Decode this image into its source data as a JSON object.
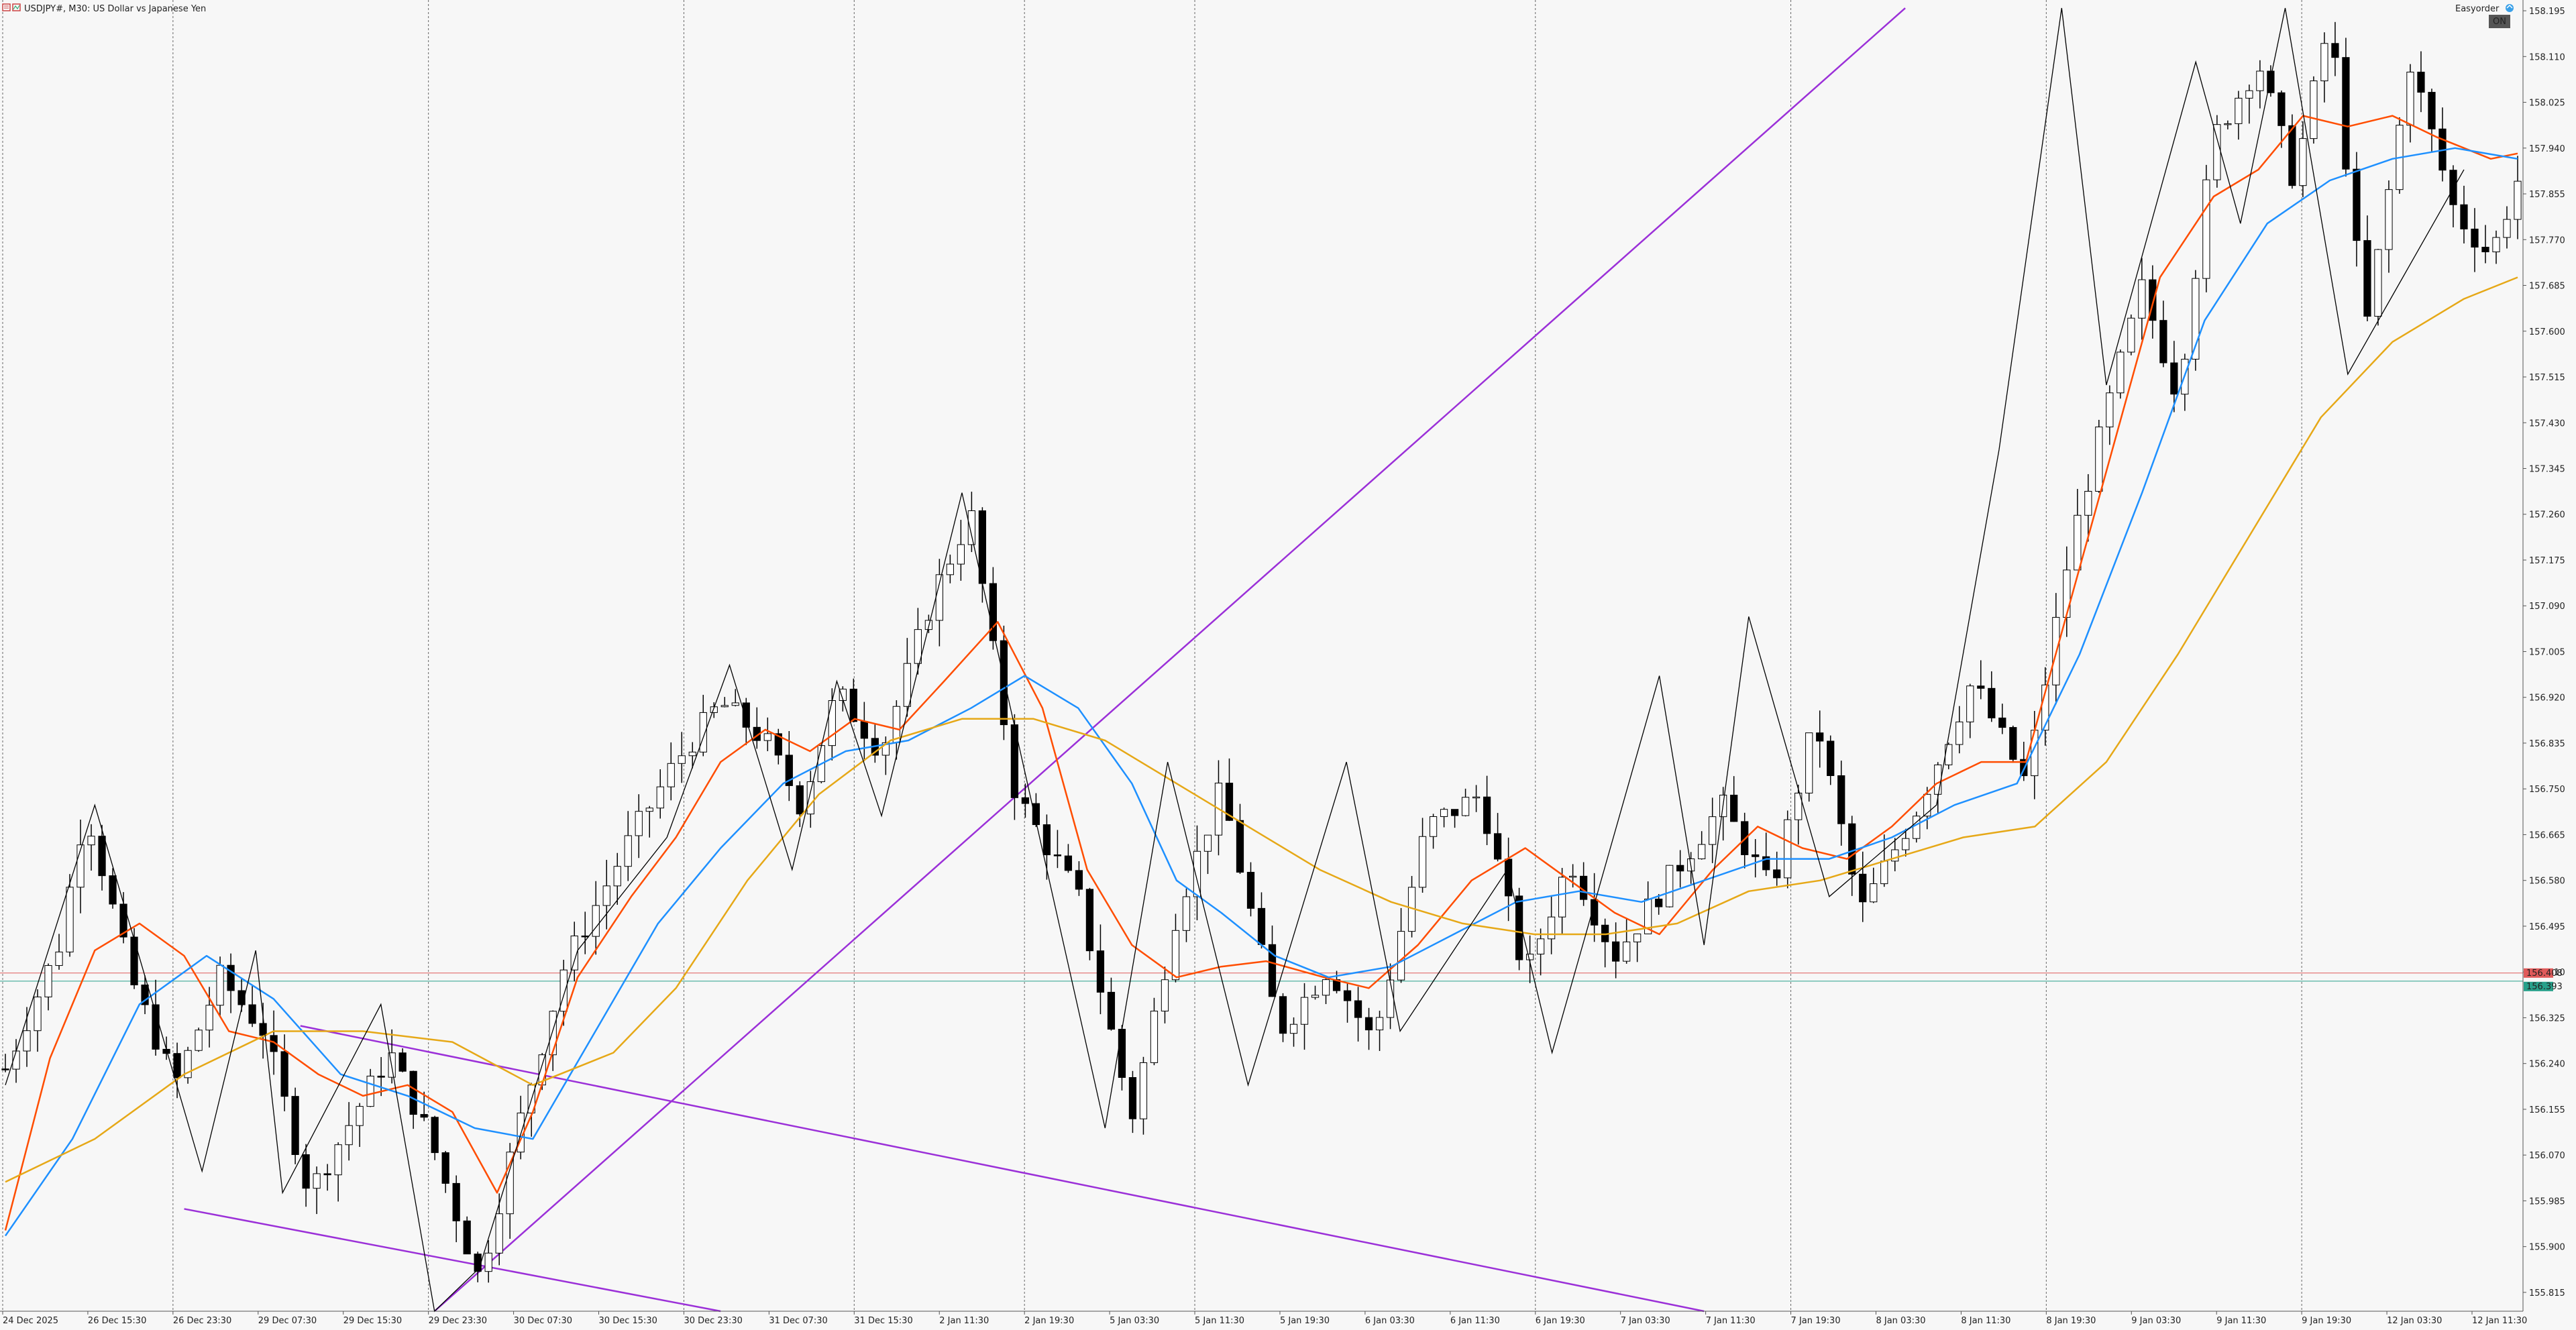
{
  "header": {
    "symbol_title": "USDJPY#, M30:  US Dollar vs Japanese Yen",
    "easy_order_label": "Easyorder",
    "on_badge": "ON",
    "icon_names": [
      "chart-menu-icon",
      "indicator-icon",
      "easyorder-icon"
    ]
  },
  "price_labels": {
    "bid": "156.408",
    "ask": "156.393"
  },
  "colors": {
    "background": "#f7f7f7",
    "candle_bull": "#ffffff",
    "candle_bear": "#000000",
    "ma_fast": "#ff4d00",
    "ma_mid": "#1e90ff",
    "ma_slow": "#e6a817",
    "trendline": "#9b30d8",
    "zigzag": "#000000",
    "bid_line": "#e05a5a",
    "ask_line": "#27a08a"
  },
  "chart_data": {
    "type": "candlestick",
    "symbol": "USDJPY#",
    "timeframe": "M30",
    "y_ticks": [
      "158.195",
      "158.110",
      "158.025",
      "157.940",
      "157.855",
      "157.770",
      "157.685",
      "157.600",
      "157.515",
      "157.430",
      "157.345",
      "157.260",
      "157.175",
      "157.090",
      "157.005",
      "156.920",
      "156.835",
      "156.750",
      "156.665",
      "156.580",
      "156.495",
      "156.410",
      "156.325",
      "156.240",
      "156.155",
      "156.070",
      "155.985",
      "155.900",
      "155.815"
    ],
    "ylim": [
      155.78,
      158.215
    ],
    "x_ticks": [
      "24 Dec 2025",
      "26 Dec 15:30",
      "26 Dec 23:30",
      "29 Dec 07:30",
      "29 Dec 15:30",
      "29 Dec 23:30",
      "30 Dec 07:30",
      "30 Dec 15:30",
      "30 Dec 23:30",
      "31 Dec 07:30",
      "31 Dec 15:30",
      "2 Jan 11:30",
      "2 Jan 19:30",
      "5 Jan 03:30",
      "5 Jan 11:30",
      "5 Jan 19:30",
      "6 Jan 03:30",
      "6 Jan 11:30",
      "6 Jan 19:30",
      "7 Jan 03:30",
      "7 Jan 11:30",
      "7 Jan 19:30",
      "8 Jan 03:30",
      "8 Jan 11:30",
      "8 Jan 19:30",
      "9 Jan 03:30",
      "9 Jan 11:30",
      "9 Jan 19:30",
      "12 Jan 03:30",
      "12 Jan 11:30"
    ],
    "day_separator_indices": [
      2,
      5,
      8,
      10,
      12,
      14,
      18,
      21,
      24,
      27
    ],
    "bid": 156.408,
    "ask": 156.393,
    "candle_count": 235,
    "close_path": [
      [
        0,
        156.23
      ],
      [
        12,
        156.46
      ],
      [
        18,
        156.72
      ],
      [
        28,
        156.4
      ],
      [
        38,
        156.2
      ],
      [
        48,
        156.4
      ],
      [
        58,
        156.3
      ],
      [
        68,
        156.0
      ],
      [
        75,
        156.1
      ],
      [
        86,
        156.26
      ],
      [
        95,
        156.1
      ],
      [
        106,
        155.84
      ],
      [
        114,
        156.1
      ],
      [
        125,
        156.42
      ],
      [
        140,
        156.66
      ],
      [
        150,
        156.8
      ],
      [
        160,
        156.91
      ],
      [
        170,
        156.84
      ],
      [
        178,
        156.72
      ],
      [
        186,
        156.93
      ],
      [
        196,
        156.82
      ],
      [
        208,
        157.12
      ],
      [
        216,
        157.26
      ],
      [
        226,
        156.74
      ],
      [
        240,
        156.55
      ],
      [
        252,
        156.14
      ],
      [
        262,
        156.52
      ],
      [
        272,
        156.75
      ],
      [
        285,
        156.3
      ],
      [
        296,
        156.42
      ],
      [
        306,
        156.28
      ],
      [
        318,
        156.68
      ],
      [
        330,
        156.74
      ],
      [
        340,
        156.4
      ],
      [
        350,
        156.62
      ],
      [
        360,
        156.44
      ],
      [
        372,
        156.58
      ],
      [
        384,
        156.72
      ],
      [
        395,
        156.56
      ],
      [
        405,
        156.88
      ],
      [
        415,
        156.52
      ],
      [
        428,
        156.72
      ],
      [
        440,
        156.95
      ],
      [
        452,
        156.76
      ],
      [
        462,
        157.2
      ],
      [
        470,
        157.45
      ],
      [
        478,
        157.68
      ],
      [
        486,
        157.48
      ],
      [
        494,
        157.96
      ],
      [
        504,
        158.1
      ],
      [
        512,
        157.88
      ],
      [
        520,
        158.18
      ],
      [
        528,
        157.6
      ],
      [
        538,
        158.1
      ],
      [
        548,
        157.82
      ],
      [
        556,
        157.74
      ],
      [
        562,
        157.88
      ]
    ],
    "close_path_x_note": "M30 bar index from 0 at 24 Dec 2025",
    "series": [
      {
        "name": "",
        "kind": "MA fast",
        "points": [
          [
            0,
            155.93
          ],
          [
            10,
            156.25
          ],
          [
            20,
            156.45
          ],
          [
            30,
            156.5
          ],
          [
            40,
            156.44
          ],
          [
            50,
            156.3
          ],
          [
            60,
            156.28
          ],
          [
            70,
            156.22
          ],
          [
            80,
            156.18
          ],
          [
            90,
            156.2
          ],
          [
            100,
            156.15
          ],
          [
            110,
            156.0
          ],
          [
            118,
            156.15
          ],
          [
            128,
            156.4
          ],
          [
            140,
            156.55
          ],
          [
            150,
            156.66
          ],
          [
            160,
            156.8
          ],
          [
            170,
            156.86
          ],
          [
            180,
            156.82
          ],
          [
            190,
            156.88
          ],
          [
            200,
            156.86
          ],
          [
            210,
            156.95
          ],
          [
            222,
            157.06
          ],
          [
            232,
            156.9
          ],
          [
            242,
            156.6
          ],
          [
            252,
            156.46
          ],
          [
            262,
            156.4
          ],
          [
            272,
            156.42
          ],
          [
            282,
            156.43
          ],
          [
            295,
            156.4
          ],
          [
            305,
            156.38
          ],
          [
            316,
            156.46
          ],
          [
            328,
            156.58
          ],
          [
            340,
            156.64
          ],
          [
            350,
            156.58
          ],
          [
            360,
            156.52
          ],
          [
            370,
            156.48
          ],
          [
            382,
            156.6
          ],
          [
            392,
            156.68
          ],
          [
            402,
            156.64
          ],
          [
            412,
            156.62
          ],
          [
            422,
            156.68
          ],
          [
            432,
            156.76
          ],
          [
            442,
            156.8
          ],
          [
            452,
            156.8
          ],
          [
            462,
            157.1
          ],
          [
            472,
            157.4
          ],
          [
            482,
            157.7
          ],
          [
            494,
            157.85
          ],
          [
            504,
            157.9
          ],
          [
            514,
            158.0
          ],
          [
            524,
            157.98
          ],
          [
            534,
            158.0
          ],
          [
            544,
            157.96
          ],
          [
            556,
            157.92
          ],
          [
            562,
            157.93
          ]
        ]
      },
      {
        "name": "",
        "kind": "MA mid",
        "points": [
          [
            0,
            155.92
          ],
          [
            15,
            156.1
          ],
          [
            30,
            156.35
          ],
          [
            45,
            156.44
          ],
          [
            60,
            156.36
          ],
          [
            75,
            156.22
          ],
          [
            90,
            156.18
          ],
          [
            105,
            156.12
          ],
          [
            118,
            156.1
          ],
          [
            132,
            156.3
          ],
          [
            146,
            156.5
          ],
          [
            160,
            156.64
          ],
          [
            174,
            156.76
          ],
          [
            188,
            156.82
          ],
          [
            202,
            156.84
          ],
          [
            216,
            156.9
          ],
          [
            228,
            156.96
          ],
          [
            240,
            156.9
          ],
          [
            252,
            156.76
          ],
          [
            262,
            156.58
          ],
          [
            272,
            156.52
          ],
          [
            284,
            156.44
          ],
          [
            296,
            156.4
          ],
          [
            310,
            156.42
          ],
          [
            324,
            156.48
          ],
          [
            338,
            156.54
          ],
          [
            352,
            156.56
          ],
          [
            366,
            156.54
          ],
          [
            380,
            156.58
          ],
          [
            394,
            156.62
          ],
          [
            408,
            156.62
          ],
          [
            422,
            156.66
          ],
          [
            436,
            156.72
          ],
          [
            450,
            156.76
          ],
          [
            464,
            157.0
          ],
          [
            478,
            157.3
          ],
          [
            492,
            157.62
          ],
          [
            506,
            157.8
          ],
          [
            520,
            157.88
          ],
          [
            534,
            157.92
          ],
          [
            548,
            157.94
          ],
          [
            562,
            157.92
          ]
        ]
      },
      {
        "name": "",
        "kind": "MA slow",
        "points": [
          [
            0,
            156.02
          ],
          [
            20,
            156.1
          ],
          [
            40,
            156.22
          ],
          [
            60,
            156.3
          ],
          [
            80,
            156.3
          ],
          [
            100,
            156.28
          ],
          [
            118,
            156.2
          ],
          [
            136,
            156.26
          ],
          [
            150,
            156.38
          ],
          [
            166,
            156.58
          ],
          [
            182,
            156.74
          ],
          [
            198,
            156.84
          ],
          [
            214,
            156.88
          ],
          [
            230,
            156.88
          ],
          [
            246,
            156.84
          ],
          [
            262,
            156.76
          ],
          [
            278,
            156.68
          ],
          [
            294,
            156.6
          ],
          [
            310,
            156.54
          ],
          [
            326,
            156.5
          ],
          [
            342,
            156.48
          ],
          [
            358,
            156.48
          ],
          [
            374,
            156.5
          ],
          [
            390,
            156.56
          ],
          [
            406,
            156.58
          ],
          [
            422,
            156.62
          ],
          [
            438,
            156.66
          ],
          [
            454,
            156.68
          ],
          [
            470,
            156.8
          ],
          [
            486,
            157.0
          ],
          [
            502,
            157.22
          ],
          [
            518,
            157.44
          ],
          [
            534,
            157.58
          ],
          [
            550,
            157.66
          ],
          [
            562,
            157.7
          ]
        ]
      }
    ],
    "zigzag": [
      [
        0,
        156.2
      ],
      [
        20,
        156.72
      ],
      [
        44,
        156.04
      ],
      [
        56,
        156.45
      ],
      [
        62,
        156.0
      ],
      [
        84,
        156.35
      ],
      [
        96,
        155.78
      ],
      [
        106,
        155.86
      ],
      [
        128,
        156.45
      ],
      [
        148,
        156.66
      ],
      [
        162,
        156.98
      ],
      [
        176,
        156.6
      ],
      [
        186,
        156.95
      ],
      [
        196,
        156.7
      ],
      [
        214,
        157.3
      ],
      [
        246,
        156.12
      ],
      [
        260,
        156.8
      ],
      [
        278,
        156.2
      ],
      [
        300,
        156.8
      ],
      [
        312,
        156.3
      ],
      [
        336,
        156.6
      ],
      [
        346,
        156.26
      ],
      [
        370,
        156.96
      ],
      [
        380,
        156.46
      ],
      [
        390,
        157.07
      ],
      [
        408,
        156.55
      ],
      [
        432,
        156.72
      ],
      [
        446,
        157.38
      ],
      [
        460,
        158.2
      ],
      [
        470,
        157.5
      ],
      [
        490,
        158.1
      ],
      [
        500,
        157.8
      ],
      [
        510,
        158.2
      ],
      [
        524,
        157.52
      ],
      [
        550,
        157.9
      ]
    ],
    "trendlines": [
      {
        "name": "",
        "from": [
          96,
          155.78
        ],
        "to": [
          425,
          158.2
        ]
      },
      {
        "name": "",
        "from": [
          66,
          156.31
        ],
        "to": [
          380,
          155.78
        ]
      },
      {
        "name": "",
        "from": [
          40,
          155.97
        ],
        "to": [
          160,
          155.78
        ]
      }
    ]
  }
}
